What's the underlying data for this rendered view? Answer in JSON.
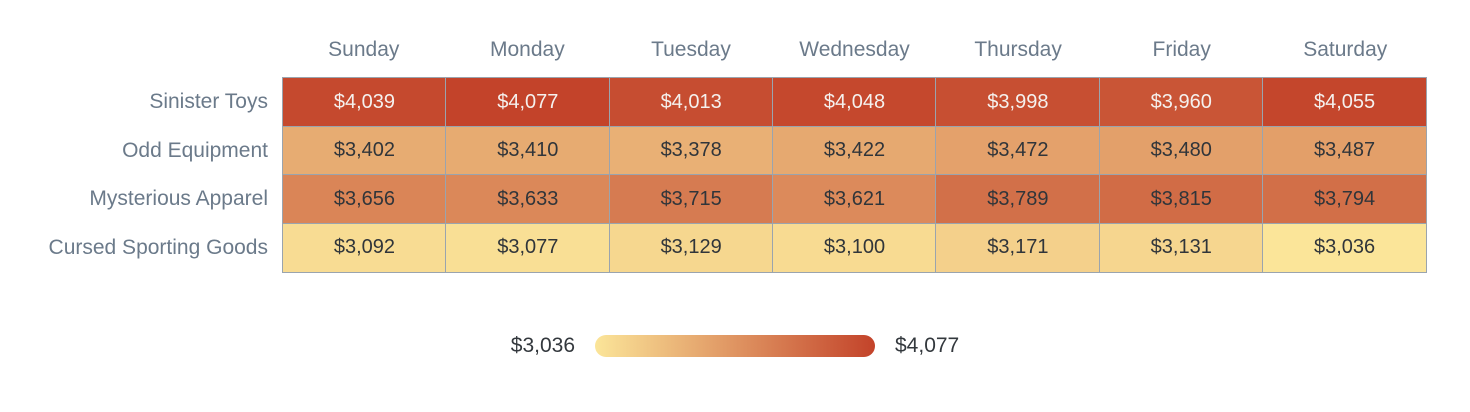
{
  "heatmap": {
    "columns": [
      "Sunday",
      "Monday",
      "Tuesday",
      "Wednesday",
      "Thursday",
      "Friday",
      "Saturday"
    ],
    "rows": [
      {
        "label": "Sinister Toys",
        "values": [
          4039,
          4077,
          4013,
          4048,
          3998,
          3960,
          4055
        ]
      },
      {
        "label": "Odd Equipment",
        "values": [
          3402,
          3410,
          3378,
          3422,
          3472,
          3480,
          3487
        ]
      },
      {
        "label": "Mysterious Apparel",
        "values": [
          3656,
          3633,
          3715,
          3621,
          3789,
          3815,
          3794
        ]
      },
      {
        "label": "Cursed Sporting Goods",
        "values": [
          3092,
          3077,
          3129,
          3100,
          3171,
          3131,
          3036
        ]
      }
    ],
    "value_prefix": "$",
    "scale": {
      "min": 3036,
      "max": 4077,
      "min_color": "#FBE599",
      "max_color": "#C3432A",
      "light_text_threshold": 0.82
    }
  },
  "legend": {
    "min_label": "$3,036",
    "max_label": "$4,077"
  },
  "colors": {
    "grid_border": "#9AA4AE",
    "axis_text": "#6B7A8A",
    "cell_text_dark": "#30353A",
    "cell_text_light": "#F5F1EE",
    "legend_text": "#33383D",
    "background": "#FFFFFF"
  },
  "chart_data": {
    "type": "heatmap",
    "title": "",
    "xlabel": "",
    "ylabel": "",
    "x": [
      "Sunday",
      "Monday",
      "Tuesday",
      "Wednesday",
      "Thursday",
      "Friday",
      "Saturday"
    ],
    "y": [
      "Sinister Toys",
      "Odd Equipment",
      "Mysterious Apparel",
      "Cursed Sporting Goods"
    ],
    "values": [
      [
        4039,
        4077,
        4013,
        4048,
        3998,
        3960,
        4055
      ],
      [
        3402,
        3410,
        3378,
        3422,
        3472,
        3480,
        3487
      ],
      [
        3656,
        3633,
        3715,
        3621,
        3789,
        3815,
        3794
      ],
      [
        3092,
        3077,
        3129,
        3100,
        3171,
        3131,
        3036
      ]
    ],
    "value_format": "$#,##0",
    "colorscale": {
      "min": 3036,
      "max": 4077,
      "min_color": "#FBE599",
      "max_color": "#C3432A"
    },
    "legend_position": "bottom-center",
    "grid": true
  }
}
